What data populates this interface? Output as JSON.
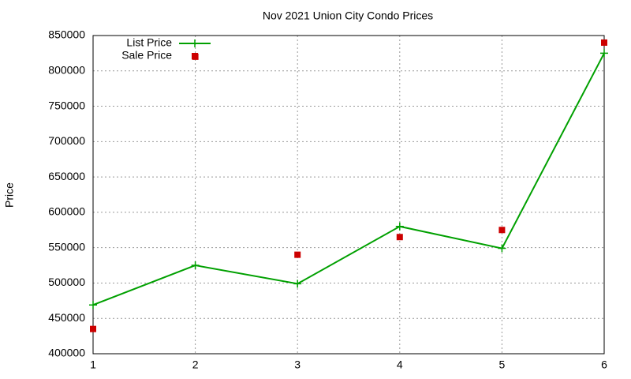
{
  "chart_data": {
    "type": "line",
    "title": "Nov 2021 Union City Condo Prices",
    "ylabel": "Price",
    "x": [
      1,
      2,
      3,
      4,
      5,
      6
    ],
    "series": [
      {
        "name": "List Price",
        "color": "#00a000",
        "style": "linespoints",
        "values": [
          469000,
          525000,
          499000,
          580000,
          549000,
          825000
        ]
      },
      {
        "name": "Sale Price",
        "color": "#cc0000",
        "style": "points",
        "values": [
          435000,
          820000,
          540000,
          565000,
          575000,
          840000
        ]
      }
    ],
    "xlim": [
      1,
      6
    ],
    "xticks": [
      1,
      2,
      3,
      4,
      5,
      6
    ],
    "ylim": [
      400000,
      850000
    ],
    "yticks": [
      400000,
      450000,
      500000,
      550000,
      600000,
      650000,
      700000,
      750000,
      800000,
      850000
    ],
    "grid": true,
    "legend": "top-left"
  }
}
